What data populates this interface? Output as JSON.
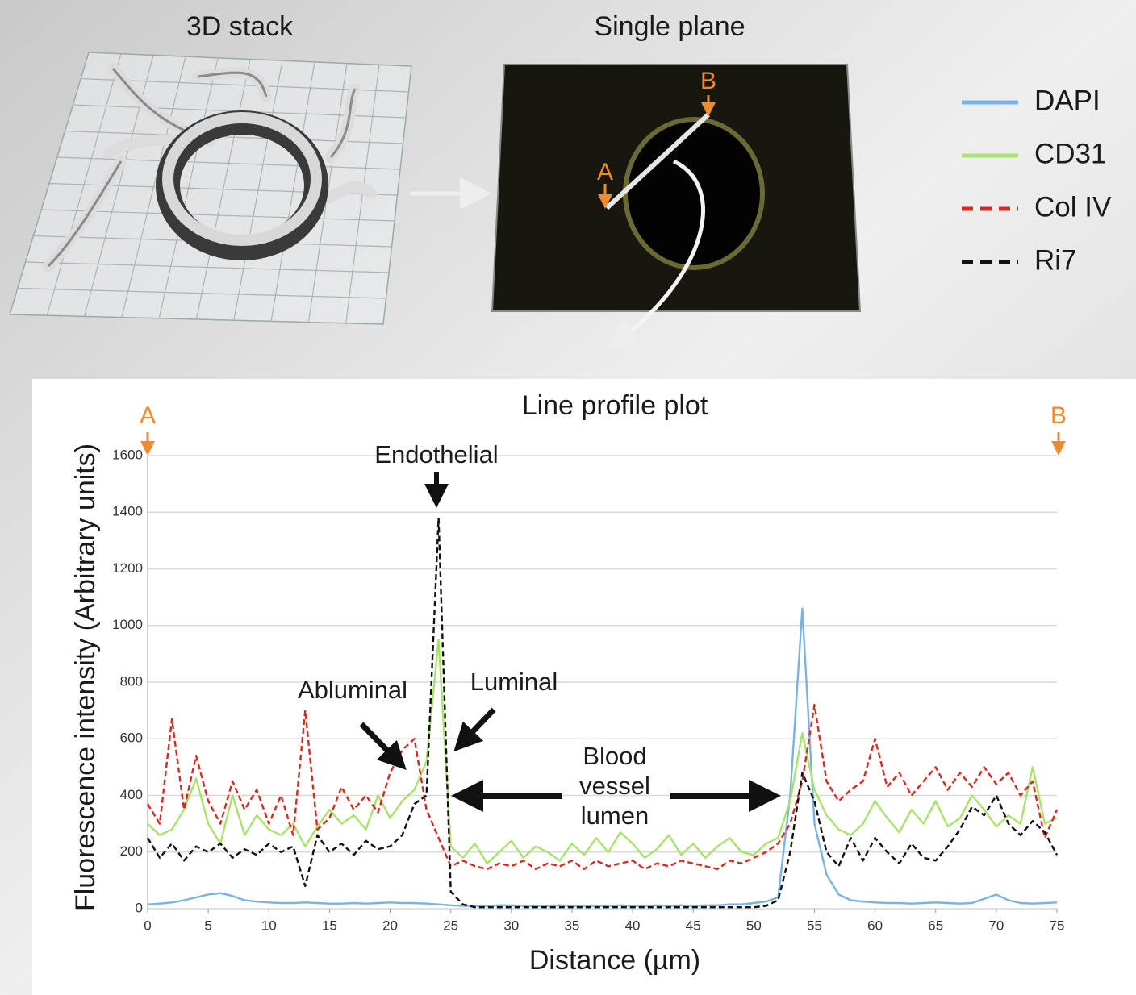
{
  "illustration": {
    "left_title": "3D stack",
    "right_title": "Single plane"
  },
  "annotations": {
    "endothelial": "Endothelial",
    "abluminal": "Abluminal",
    "luminal": "Luminal",
    "lumen": [
      "Blood",
      "vessel",
      "lumen"
    ]
  },
  "chart_data": {
    "type": "line",
    "title": "Line profile plot",
    "x_label": "Distance (µm)",
    "y_label": "Fluorescence intensity (Arbitrary units)",
    "point_labels": {
      "start": "A",
      "end": "B"
    },
    "xlim": [
      0,
      75
    ],
    "ylim": [
      0,
      1600
    ],
    "xticks": [
      0,
      5,
      10,
      15,
      20,
      25,
      30,
      35,
      40,
      45,
      50,
      55,
      60,
      65,
      70,
      75
    ],
    "yticks": [
      0,
      200,
      400,
      600,
      800,
      1000,
      1200,
      1400,
      1600
    ],
    "grid": true,
    "legend": "upper right",
    "x": [
      0,
      1,
      2,
      3,
      4,
      5,
      6,
      7,
      8,
      9,
      10,
      11,
      12,
      13,
      14,
      15,
      16,
      17,
      18,
      19,
      20,
      21,
      22,
      23,
      24,
      25,
      26,
      27,
      28,
      29,
      30,
      31,
      32,
      33,
      34,
      35,
      36,
      37,
      38,
      39,
      40,
      41,
      42,
      43,
      44,
      45,
      46,
      47,
      48,
      49,
      50,
      51,
      52,
      53,
      54,
      55,
      56,
      57,
      58,
      59,
      60,
      61,
      62,
      63,
      64,
      65,
      66,
      67,
      68,
      69,
      70,
      71,
      72,
      73,
      74,
      75
    ],
    "series": [
      {
        "name": "DAPI",
        "color": "#79b3e4",
        "style": "solid",
        "values": [
          15,
          18,
          22,
          30,
          40,
          50,
          55,
          45,
          30,
          25,
          22,
          20,
          20,
          22,
          20,
          18,
          18,
          20,
          18,
          20,
          22,
          20,
          20,
          18,
          15,
          12,
          10,
          10,
          10,
          12,
          12,
          10,
          10,
          10,
          12,
          10,
          10,
          10,
          10,
          12,
          10,
          10,
          12,
          10,
          12,
          10,
          12,
          12,
          15,
          15,
          20,
          25,
          40,
          400,
          1060,
          300,
          120,
          50,
          30,
          25,
          22,
          20,
          20,
          18,
          20,
          22,
          20,
          18,
          20,
          35,
          50,
          30,
          20,
          18,
          20,
          22
        ]
      },
      {
        "name": "CD31",
        "color": "#a8e36c",
        "style": "solid",
        "values": [
          300,
          260,
          280,
          350,
          460,
          300,
          230,
          400,
          260,
          330,
          280,
          260,
          300,
          220,
          290,
          350,
          300,
          330,
          280,
          400,
          320,
          380,
          420,
          520,
          950,
          220,
          180,
          230,
          160,
          200,
          240,
          180,
          220,
          200,
          170,
          230,
          190,
          250,
          200,
          270,
          230,
          180,
          210,
          260,
          190,
          230,
          180,
          220,
          250,
          200,
          190,
          230,
          250,
          380,
          620,
          420,
          330,
          280,
          260,
          300,
          380,
          320,
          270,
          350,
          300,
          380,
          290,
          320,
          400,
          350,
          290,
          330,
          300,
          500,
          300,
          320
        ]
      },
      {
        "name": "Col IV",
        "color": "#d9291f",
        "style": "dashed",
        "values": [
          370,
          300,
          670,
          350,
          540,
          380,
          300,
          450,
          350,
          420,
          300,
          400,
          260,
          700,
          280,
          320,
          430,
          350,
          400,
          340,
          480,
          560,
          600,
          350,
          250,
          150,
          170,
          150,
          140,
          160,
          150,
          170,
          140,
          160,
          150,
          170,
          140,
          170,
          150,
          160,
          170,
          140,
          160,
          150,
          170,
          160,
          150,
          140,
          170,
          160,
          180,
          200,
          230,
          300,
          450,
          720,
          450,
          380,
          420,
          450,
          600,
          430,
          480,
          400,
          450,
          500,
          420,
          480,
          430,
          500,
          440,
          480,
          400,
          450,
          250,
          350
        ]
      },
      {
        "name": "Ri7",
        "color": "#111111",
        "style": "dashed",
        "values": [
          250,
          180,
          230,
          170,
          220,
          200,
          230,
          180,
          210,
          190,
          230,
          200,
          220,
          80,
          260,
          200,
          230,
          190,
          240,
          210,
          220,
          260,
          370,
          400,
          1380,
          60,
          15,
          5,
          5,
          5,
          5,
          5,
          5,
          5,
          5,
          5,
          5,
          5,
          5,
          5,
          5,
          5,
          5,
          5,
          5,
          5,
          5,
          5,
          5,
          5,
          5,
          10,
          30,
          200,
          480,
          380,
          200,
          150,
          250,
          170,
          250,
          200,
          160,
          230,
          180,
          170,
          220,
          280,
          360,
          330,
          400,
          300,
          260,
          310,
          270,
          190
        ]
      }
    ]
  }
}
